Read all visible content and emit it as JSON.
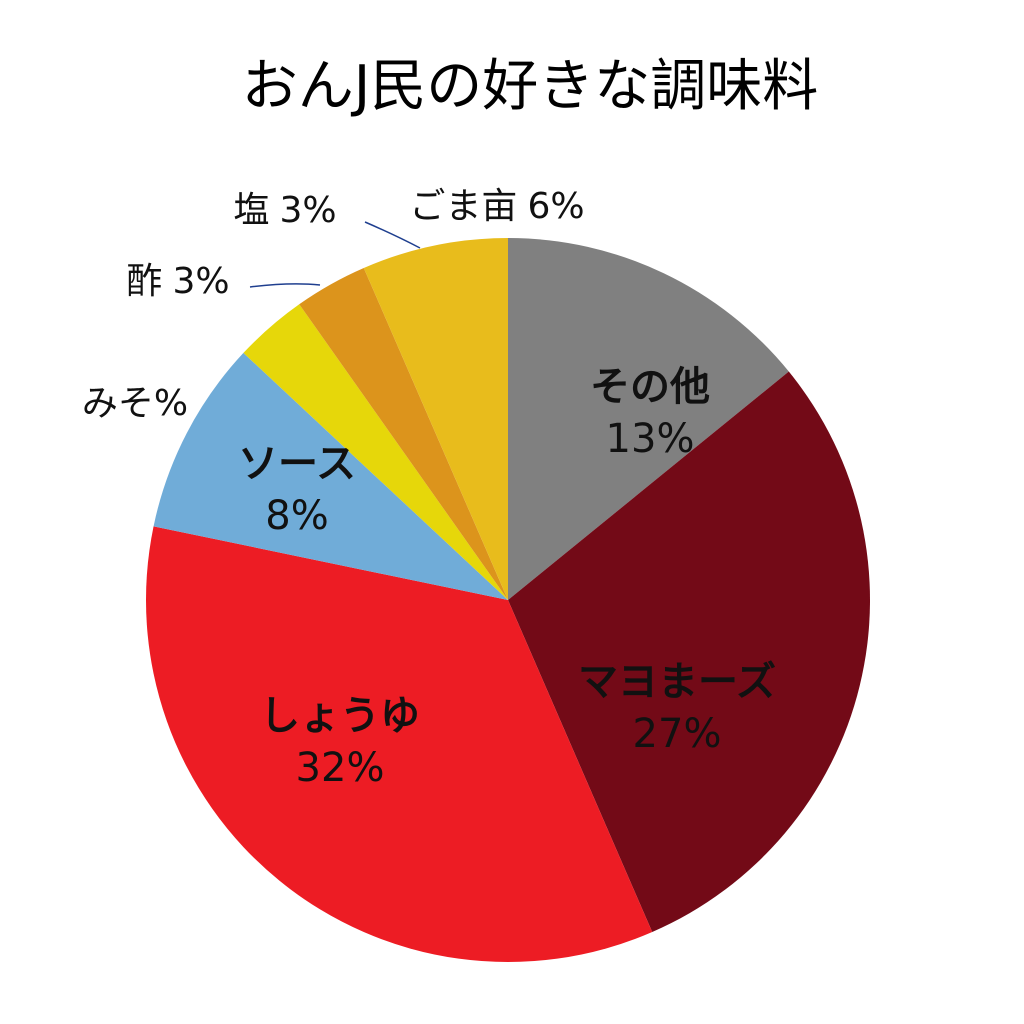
{
  "chart_data": {
    "type": "pie",
    "title": "おんJ民の好きな調味料",
    "categories": [
      "その他",
      "マヨまーズ",
      "しょうゆ",
      "ソース",
      "みそ%",
      "酢",
      "塩",
      "ごま亩"
    ],
    "values": [
      13,
      27,
      32,
      8,
      null,
      3,
      3,
      6
    ],
    "value_labels": [
      "13%",
      "27%",
      "32%",
      "8%",
      null,
      "3%",
      "3%",
      "6%"
    ],
    "colors": [
      "#808080",
      "#730a17",
      "#ed1c24",
      "#70acd8",
      null,
      "#e6d70a",
      "#dc941c",
      "#e8bc1c"
    ]
  }
}
